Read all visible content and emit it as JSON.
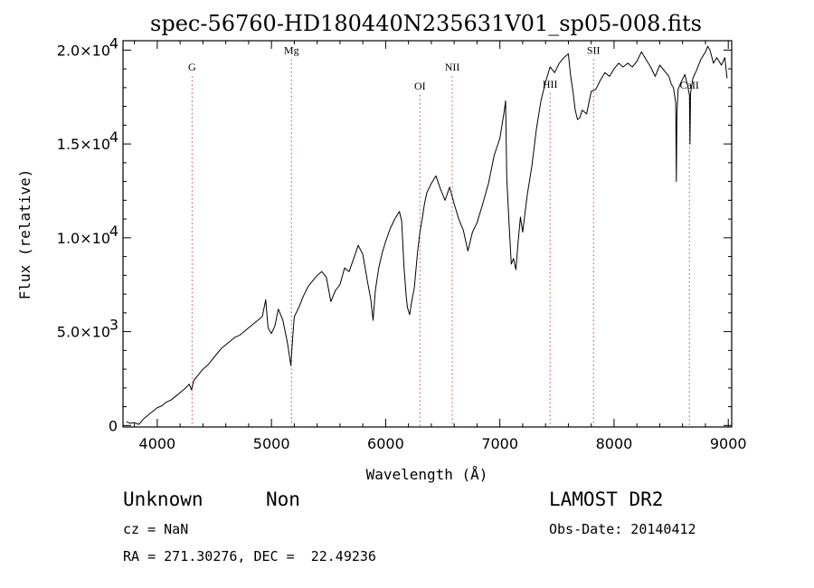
{
  "chart_data": {
    "type": "line",
    "title": "spec-56760-HD180440N235631V01_sp05-008.fits",
    "xlabel": "Wavelength (Å)",
    "ylabel": "Flux (relative)",
    "xlim": [
      3700,
      9030
    ],
    "ylim": [
      -80,
      20500
    ],
    "x_ticks": [
      4000,
      5000,
      6000,
      7000,
      8000,
      9000
    ],
    "x_tick_labels": [
      "4000",
      "5000",
      "6000",
      "7000",
      "8000",
      "9000"
    ],
    "y_ticks": [
      {
        "value": 0,
        "mantissa": "0",
        "exp": ""
      },
      {
        "value": 5000,
        "mantissa": "5.0×10",
        "exp": "3"
      },
      {
        "value": 10000,
        "mantissa": "1.0×10",
        "exp": "4"
      },
      {
        "value": 15000,
        "mantissa": "1.5×10",
        "exp": "4"
      },
      {
        "value": 20000,
        "mantissa": "2.0×10",
        "exp": "4"
      }
    ],
    "lines": [
      {
        "name": "G",
        "wavelength": 4305,
        "label_value": 18900
      },
      {
        "name": "Mg",
        "wavelength": 5175,
        "label_value": 19800
      },
      {
        "name": "OI",
        "wavelength": 6300,
        "label_value": 17900
      },
      {
        "name": "NII",
        "wavelength": 6583,
        "label_value": 18900
      },
      {
        "name": "HII",
        "wavelength": 7440,
        "label_value": 18000
      },
      {
        "name": "SII",
        "wavelength": 7820,
        "label_value": 19800
      },
      {
        "name": "CaII",
        "wavelength": 8660,
        "label_value": 17950
      }
    ],
    "series": [
      {
        "x": [
          3730,
          3760,
          3800,
          3840,
          3880,
          3920,
          3960,
          4000,
          4040,
          4080,
          4120,
          4160,
          4200,
          4240,
          4280,
          4300,
          4320,
          4360,
          4400,
          4440,
          4480,
          4520,
          4560,
          4600,
          4640,
          4680,
          4720,
          4760,
          4800,
          4840,
          4880,
          4920,
          4950,
          4970,
          5000,
          5030,
          5060,
          5100,
          5140,
          5170,
          5185,
          5200,
          5240,
          5280,
          5320,
          5360,
          5400,
          5440,
          5480,
          5520,
          5560,
          5600,
          5640,
          5680,
          5720,
          5760,
          5800,
          5840,
          5870,
          5890,
          5910,
          5940,
          5970,
          6000,
          6040,
          6080,
          6120,
          6140,
          6160,
          6180,
          6190,
          6210,
          6230,
          6250,
          6280,
          6300,
          6320,
          6340,
          6360,
          6400,
          6440,
          6480,
          6520,
          6560,
          6600,
          6640,
          6680,
          6720,
          6760,
          6800,
          6850,
          6900,
          6950,
          7000,
          7040,
          7050,
          7060,
          7080,
          7100,
          7120,
          7140,
          7160,
          7180,
          7200,
          7240,
          7280,
          7320,
          7360,
          7400,
          7440,
          7480,
          7520,
          7560,
          7600,
          7620,
          7640,
          7660,
          7680,
          7700,
          7720,
          7760,
          7800,
          7840,
          7880,
          7920,
          7960,
          8000,
          8040,
          8080,
          8120,
          8160,
          8200,
          8240,
          8280,
          8320,
          8360,
          8400,
          8440,
          8480,
          8500,
          8520,
          8540,
          8545,
          8550,
          8560,
          8580,
          8620,
          8640,
          8660,
          8665,
          8670,
          8690,
          8720,
          8760,
          8800,
          8820,
          8840,
          8870,
          8900,
          8940,
          8970,
          8990
        ],
        "y": [
          200,
          120,
          150,
          60,
          350,
          550,
          750,
          950,
          1050,
          1250,
          1350,
          1550,
          1750,
          1950,
          2200,
          1900,
          2400,
          2700,
          3000,
          3200,
          3500,
          3800,
          4100,
          4300,
          4500,
          4700,
          4800,
          5000,
          5200,
          5400,
          5600,
          5800,
          6700,
          5200,
          4900,
          5300,
          6200,
          5600,
          4400,
          3200,
          4600,
          5800,
          6300,
          6900,
          7400,
          7700,
          8000,
          8200,
          7900,
          6600,
          7200,
          7500,
          8400,
          8200,
          8900,
          9600,
          9100,
          7700,
          6700,
          5600,
          7200,
          8400,
          9200,
          9800,
          10500,
          11000,
          11400,
          10900,
          8500,
          6900,
          6300,
          5900,
          6700,
          7300,
          9300,
          10300,
          11000,
          11800,
          12400,
          12900,
          13300,
          12600,
          12000,
          12700,
          11800,
          11000,
          10400,
          9300,
          10300,
          10800,
          11800,
          12900,
          14400,
          15300,
          16800,
          17300,
          13200,
          10800,
          8600,
          8900,
          8300,
          9800,
          11100,
          10300,
          12300,
          13800,
          15800,
          17300,
          18300,
          19100,
          18800,
          19300,
          19600,
          19800,
          18600,
          17800,
          16800,
          16300,
          16400,
          16800,
          16600,
          17800,
          17900,
          18400,
          18800,
          18600,
          19000,
          19300,
          19100,
          19300,
          19100,
          19400,
          19900,
          19500,
          19100,
          18600,
          19200,
          18900,
          18600,
          18200,
          18000,
          17200,
          13000,
          16500,
          17900,
          18200,
          18700,
          18200,
          17600,
          15000,
          17700,
          18500,
          18900,
          19500,
          19900,
          20200,
          20000,
          19300,
          19600,
          19200,
          19600,
          18500
        ]
      }
    ],
    "footer": {
      "object": "Unknown",
      "type": "Non",
      "survey": "LAMOST DR2",
      "cz": "cz = NaN",
      "obs_date": "Obs-Date: 20140412",
      "coords": "RA = 271.30276, DEC =  22.49236"
    }
  }
}
